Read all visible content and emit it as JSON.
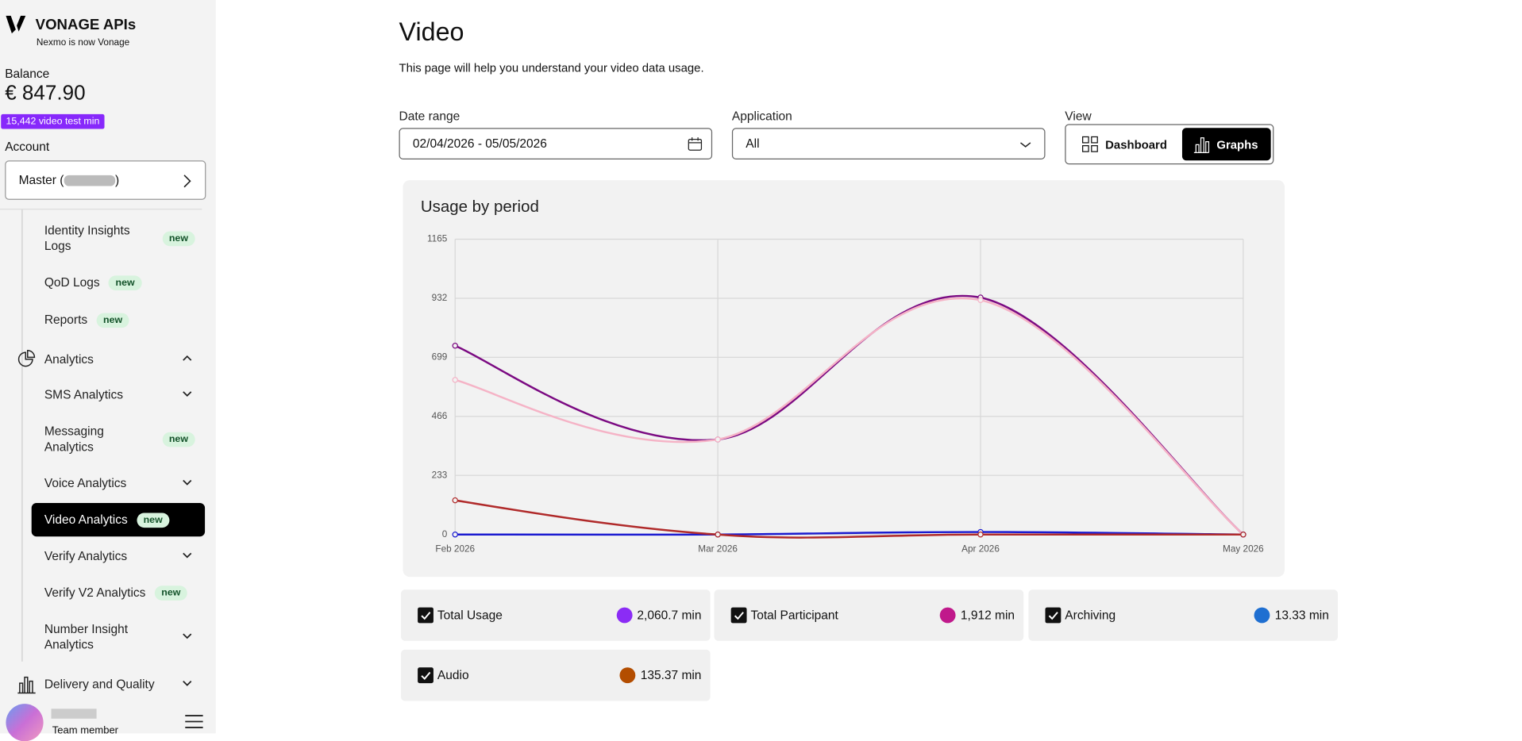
{
  "sidebar": {
    "brand": "VONAGE APIs",
    "tagline": "Nexmo is now Vonage",
    "balance_label": "Balance",
    "balance": "€ 847.90",
    "credit_badge": "15,442 video test min",
    "account_label": "Account",
    "account_prefix": "Master (",
    "account_suffix": ")",
    "nav": [
      {
        "label": "Identity Insights Logs",
        "badge": "new"
      },
      {
        "label": "QoD Logs",
        "badge": "new"
      },
      {
        "label": "Reports",
        "badge": "new"
      },
      {
        "label": "Analytics",
        "chevron": "up",
        "icon": "pie"
      },
      {
        "label": "SMS Analytics",
        "chevron": "down"
      },
      {
        "label": "Messaging Analytics",
        "badge": "new"
      },
      {
        "label": "Voice Analytics",
        "chevron": "down"
      },
      {
        "label": "Video Analytics",
        "badge": "new",
        "active": true
      },
      {
        "label": "Verify Analytics",
        "chevron": "down"
      },
      {
        "label": "Verify V2 Analytics",
        "badge": "new"
      },
      {
        "label": "Number Insight Analytics",
        "chevron": "down"
      },
      {
        "label": "Delivery and Quality",
        "chevron": "down",
        "icon": "bars"
      }
    ],
    "user_role": "Team member"
  },
  "header": {
    "title": "Video",
    "subtitle": "This page will help you understand your video data usage."
  },
  "filters": {
    "date_label": "Date range",
    "date_value": "02/04/2026 - 05/05/2026",
    "application_label": "Application",
    "application_value": "All",
    "view_label": "View",
    "view_options": [
      "Dashboard",
      "Graphs"
    ]
  },
  "chart": {
    "type": "line",
    "title": "Usage by period",
    "categories": [
      "Feb 2026",
      "Mar 2026",
      "Apr 2026",
      "May 2026"
    ],
    "ylim": [
      0,
      1165
    ],
    "yticks": [
      0,
      233,
      466,
      699,
      932,
      1165
    ],
    "grid": true,
    "series": [
      {
        "name": "Total Usage",
        "color": "#7b0a82",
        "legend_color": "#8b2cf5",
        "total": "2,060.7 min",
        "values": [
          745,
          375,
          935,
          0
        ]
      },
      {
        "name": "Total Participant",
        "color": "#f5b3c6",
        "legend_color": "#c0198b",
        "total": "1,912 min",
        "values": [
          610,
          375,
          925,
          0
        ]
      },
      {
        "name": "Archiving",
        "color": "#1a1ad0",
        "legend_color": "#1f6fd1",
        "total": "13.33 min",
        "values": [
          0,
          0,
          10,
          0
        ]
      },
      {
        "name": "Audio",
        "color": "#b02a2a",
        "legend_color": "#b34d00",
        "total": "135.37 min",
        "values": [
          135,
          0,
          0,
          0
        ]
      }
    ]
  }
}
